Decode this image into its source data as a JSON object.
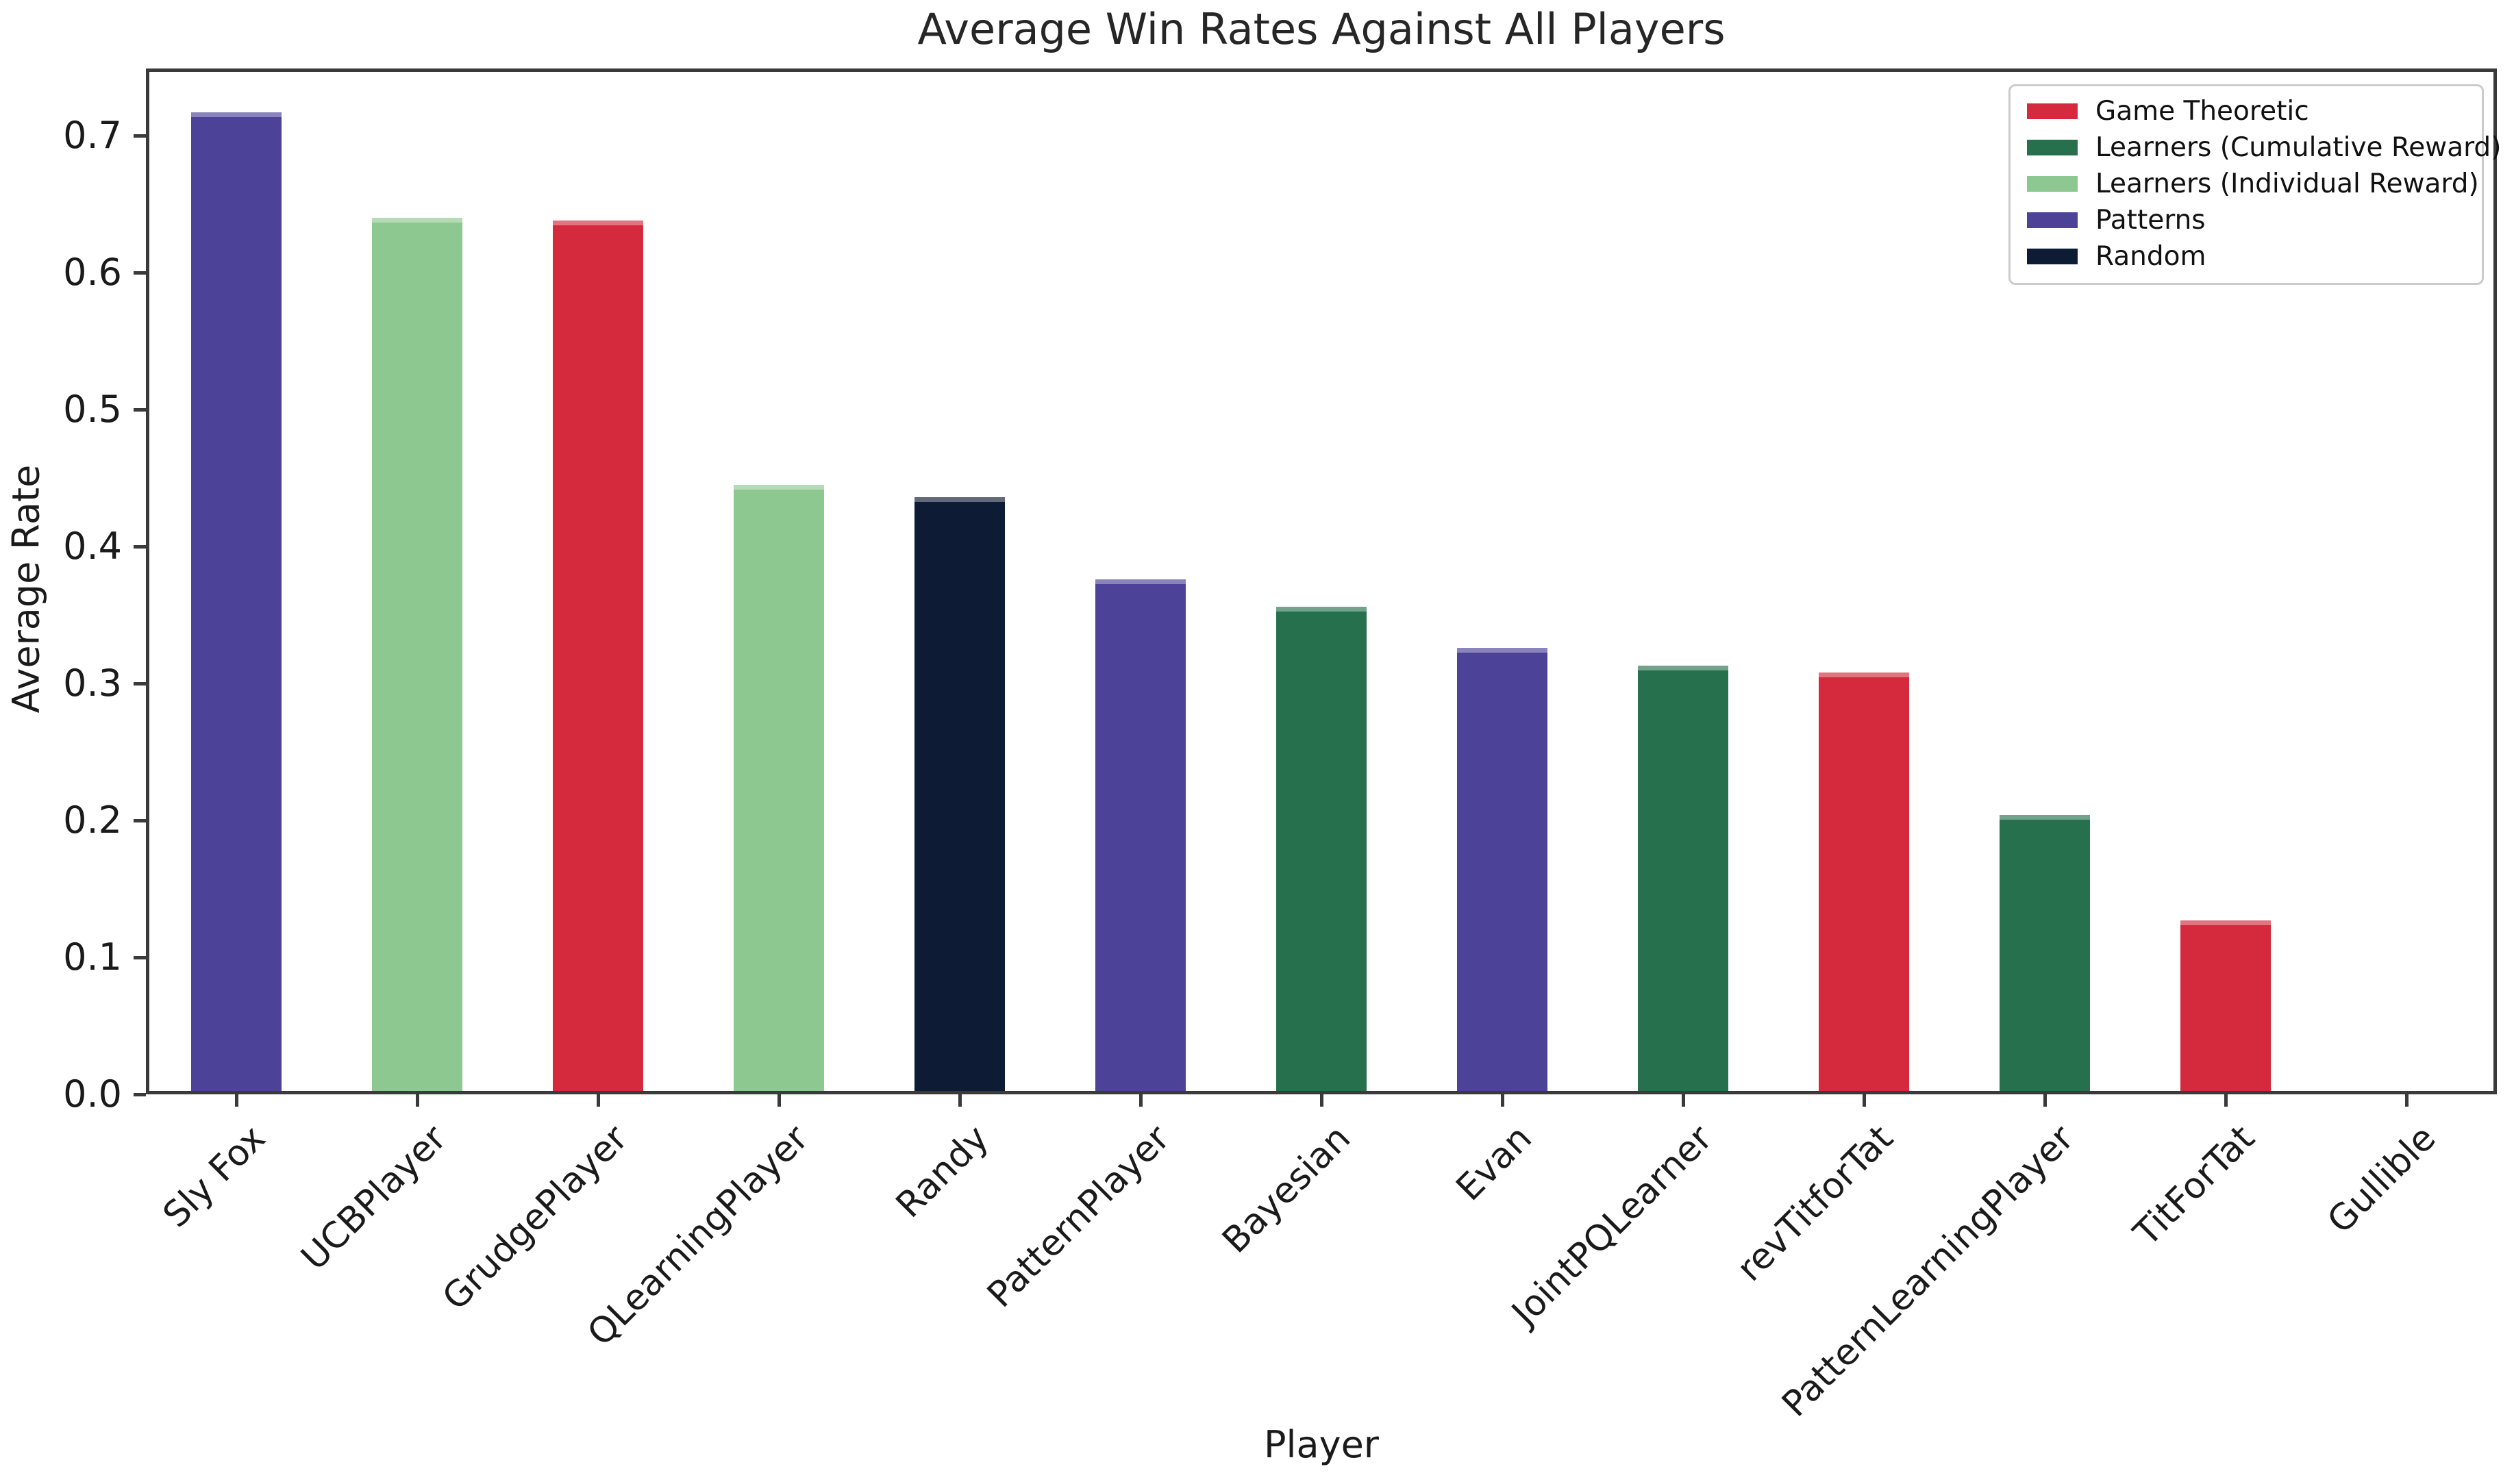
{
  "chart_data": {
    "type": "bar",
    "title": "Average Win Rates Against All Players",
    "xlabel": "Player",
    "ylabel": "Average Rate",
    "ylim": [
      0.0,
      0.749
    ],
    "grid": false,
    "yticks": [
      0.0,
      0.1,
      0.2,
      0.3,
      0.4,
      0.5,
      0.6,
      0.7
    ],
    "legend": {
      "position": "upper right",
      "entries": [
        {
          "label": "Game Theoretic",
          "color": "#d5293d"
        },
        {
          "label": "Learners (Cumulative Reward)",
          "color": "#26704e"
        },
        {
          "label": "Learners (Individual Reward)",
          "color": "#8cc88f"
        },
        {
          "label": "Patterns",
          "color": "#4c4399"
        },
        {
          "label": "Random",
          "color": "#0d1b35"
        }
      ]
    },
    "bars": [
      {
        "label": "Sly Fox",
        "value": 0.717,
        "group": "Patterns",
        "color": "#4c4399"
      },
      {
        "label": "UCBPlayer",
        "value": 0.64,
        "group": "Learners (Individual Reward)",
        "color": "#8cc88f"
      },
      {
        "label": "GrudgePlayer",
        "value": 0.638,
        "group": "Game Theoretic",
        "color": "#d5293d"
      },
      {
        "label": "QLearningPlayer",
        "value": 0.445,
        "group": "Learners (Individual Reward)",
        "color": "#8cc88f"
      },
      {
        "label": "Randy",
        "value": 0.436,
        "group": "Random",
        "color": "#0d1b35"
      },
      {
        "label": "PatternPlayer",
        "value": 0.376,
        "group": "Patterns",
        "color": "#4c4399"
      },
      {
        "label": "Bayesian",
        "value": 0.356,
        "group": "Learners (Cumulative Reward)",
        "color": "#26704e"
      },
      {
        "label": "Evan",
        "value": 0.326,
        "group": "Patterns",
        "color": "#4c4399"
      },
      {
        "label": "JointPQLearner",
        "value": 0.313,
        "group": "Learners (Cumulative Reward)",
        "color": "#26704e"
      },
      {
        "label": "revTitforTat",
        "value": 0.308,
        "group": "Game Theoretic",
        "color": "#d5293d"
      },
      {
        "label": "PatternLearningPlayer",
        "value": 0.204,
        "group": "Learners (Cumulative Reward)",
        "color": "#26704e"
      },
      {
        "label": "TitForTat",
        "value": 0.127,
        "group": "Game Theoretic",
        "color": "#d5293d"
      },
      {
        "label": "Gullible",
        "value": 0.0,
        "group": "",
        "color": ""
      }
    ]
  }
}
